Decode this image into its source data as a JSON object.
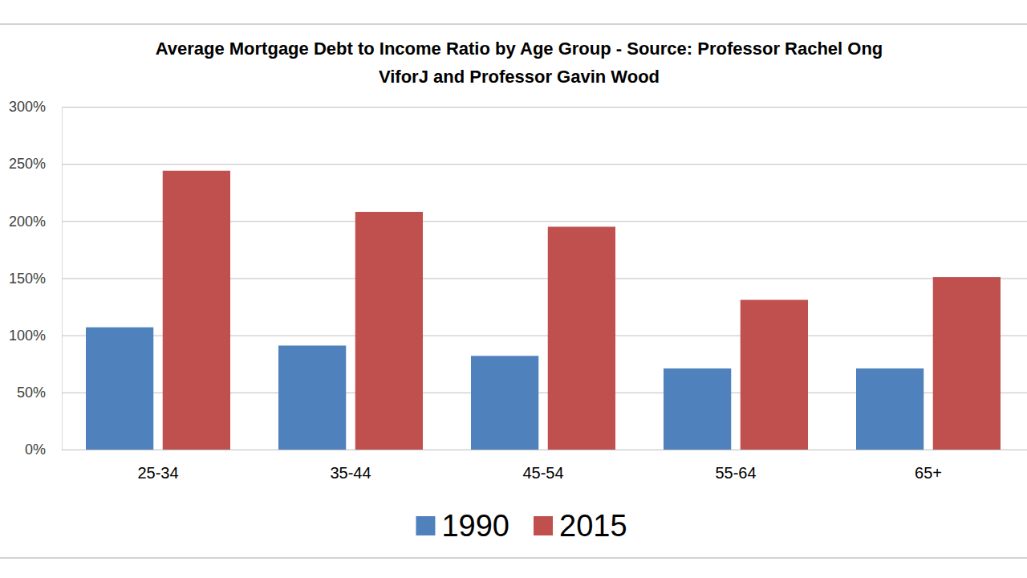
{
  "chart_data": {
    "type": "bar",
    "title": "Average Mortgage Debt to Income Ratio by Age Group - Source: Professor Rachel Ong\nViforJ and Professor Gavin Wood",
    "categories": [
      "25-34",
      "35-44",
      "45-54",
      "55-64",
      "65+"
    ],
    "series": [
      {
        "name": "1990",
        "color": "#4f81bd",
        "values": [
          107,
          91,
          82,
          71,
          71
        ]
      },
      {
        "name": "2015",
        "color": "#c0504d",
        "values": [
          244,
          208,
          195,
          131,
          151
        ]
      }
    ],
    "ylim": [
      0,
      300
    ],
    "yticks": [
      {
        "value": 0,
        "label": "0%"
      },
      {
        "value": 50,
        "label": "50%"
      },
      {
        "value": 100,
        "label": "100%"
      },
      {
        "value": 150,
        "label": "150%"
      },
      {
        "value": 200,
        "label": "200%"
      },
      {
        "value": 250,
        "label": "250%"
      },
      {
        "value": 300,
        "label": "300%"
      }
    ],
    "grid": true,
    "legend": "bottom"
  }
}
